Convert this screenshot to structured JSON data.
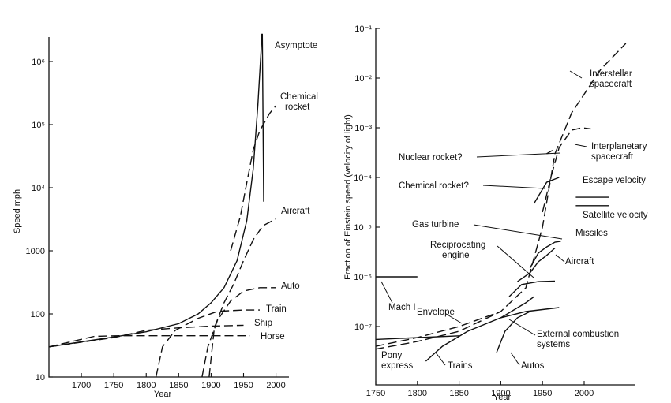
{
  "chart_data": [
    {
      "type": "line",
      "title": "",
      "xlabel": "Year",
      "ylabel": "Speed mph",
      "y_scale": "log",
      "xlim": [
        1650,
        2020
      ],
      "ylim": [
        10,
        3000000
      ],
      "x_ticks": [
        1700,
        1750,
        1800,
        1850,
        1900,
        1950,
        2000
      ],
      "y_ticks": [
        {
          "value": 10,
          "label": "10"
        },
        {
          "value": 100,
          "label": "100"
        },
        {
          "value": 1000,
          "label": "1000"
        },
        {
          "value": 10000,
          "label": "10⁴"
        },
        {
          "value": 100000,
          "label": "10⁵"
        },
        {
          "value": 1000000,
          "label": "10⁶"
        }
      ],
      "series": [
        {
          "name": "Asymptote",
          "style": "solid",
          "points": [
            [
              1650,
              30
            ],
            [
              1700,
              36
            ],
            [
              1750,
              43
            ],
            [
              1800,
              52
            ],
            [
              1850,
              70
            ],
            [
              1880,
              100
            ],
            [
              1900,
              150
            ],
            [
              1920,
              260
            ],
            [
              1940,
              700
            ],
            [
              1955,
              3000
            ],
            [
              1965,
              20000
            ],
            [
              1972,
              200000
            ],
            [
              1977,
              1500000
            ],
            [
              1978,
              2700000
            ],
            [
              1979,
              2700000
            ],
            [
              1981,
              6000
            ]
          ]
        },
        {
          "name": "Chemical rocket",
          "style": "dashed",
          "points": [
            [
              1930,
              1000
            ],
            [
              1945,
              3500
            ],
            [
              1955,
              12000
            ],
            [
              1965,
              40000
            ],
            [
              1975,
              80000
            ],
            [
              1990,
              150000
            ],
            [
              2000,
              200000
            ]
          ]
        },
        {
          "name": "Aircraft",
          "style": "dashed",
          "points": [
            [
              1897,
              10
            ],
            [
              1905,
              60
            ],
            [
              1920,
              150
            ],
            [
              1935,
              300
            ],
            [
              1950,
              700
            ],
            [
              1965,
              1500
            ],
            [
              1980,
              2500
            ],
            [
              2000,
              3200
            ]
          ]
        },
        {
          "name": "Auto",
          "style": "dashed",
          "points": [
            [
              1886,
              10
            ],
            [
              1895,
              30
            ],
            [
              1910,
              80
            ],
            [
              1930,
              160
            ],
            [
              1950,
              230
            ],
            [
              1975,
              260
            ],
            [
              2000,
              260
            ]
          ]
        },
        {
          "name": "Train",
          "style": "dashed",
          "points": [
            [
              1815,
              10
            ],
            [
              1825,
              30
            ],
            [
              1845,
              55
            ],
            [
              1880,
              85
            ],
            [
              1910,
              110
            ],
            [
              1950,
              115
            ],
            [
              1975,
              115
            ]
          ]
        },
        {
          "name": "Ship",
          "style": "dashed",
          "points": [
            [
              1650,
              30
            ],
            [
              1750,
              42
            ],
            [
              1800,
              55
            ],
            [
              1850,
              60
            ],
            [
              1900,
              64
            ],
            [
              1950,
              66
            ]
          ]
        },
        {
          "name": "Horse",
          "style": "dashed",
          "points": [
            [
              1650,
              30
            ],
            [
              1720,
              44
            ],
            [
              1760,
              45
            ],
            [
              1850,
              45
            ],
            [
              1900,
              45
            ],
            [
              1960,
              45
            ]
          ]
        }
      ]
    },
    {
      "type": "line",
      "title": "",
      "xlabel": "Year",
      "ylabel": "Fraction of Einstein speed (velocity of light)",
      "y_scale": "log",
      "xlim": [
        1750,
        2080
      ],
      "ylim": [
        2e-08,
        0.1
      ],
      "x_ticks": [
        1750,
        1800,
        1850,
        1900,
        1950,
        2000
      ],
      "y_ticks": [
        {
          "value": 0.1,
          "label": "10⁻¹"
        },
        {
          "value": 0.01,
          "label": "10⁻²"
        },
        {
          "value": 0.001,
          "label": "10⁻³"
        },
        {
          "value": 0.0001,
          "label": "10⁻⁴"
        },
        {
          "value": 1e-05,
          "label": "10⁻⁵"
        },
        {
          "value": 1e-06,
          "label": "10⁻⁶"
        },
        {
          "value": 1e-07,
          "label": "10⁻⁷"
        }
      ],
      "series": [
        {
          "name": "Interstellar spacecraft",
          "style": "dashed",
          "points": [
            [
              1750,
              3.5e-08
            ],
            [
              1800,
              5e-08
            ],
            [
              1850,
              8e-08
            ],
            [
              1900,
              2e-07
            ],
            [
              1930,
              6e-07
            ],
            [
              1950,
              1e-05
            ],
            [
              1965,
              0.0003
            ],
            [
              1985,
              0.002
            ],
            [
              2020,
              0.015
            ],
            [
              2050,
              0.05
            ]
          ]
        },
        {
          "name": "Interplanetary spacecraft",
          "style": "dashed",
          "points": [
            [
              1950,
              2e-05
            ],
            [
              1960,
              0.0001
            ],
            [
              1970,
              0.0004
            ],
            [
              1985,
              0.0009
            ],
            [
              1998,
              0.001
            ],
            [
              2008,
              0.00095
            ]
          ]
        },
        {
          "name": "Nuclear rocket?",
          "style": "solid",
          "points": [
            [
              1955,
              0.0003
            ],
            [
              1962,
              0.00035
            ]
          ]
        },
        {
          "name": "Chemical rocket?",
          "style": "solid",
          "points": [
            [
              1940,
              3e-05
            ],
            [
              1955,
              8e-05
            ],
            [
              1970,
              0.0001
            ]
          ]
        },
        {
          "name": "Missiles",
          "style": "solid",
          "points": [
            [
              1935,
              1.5e-06
            ],
            [
              1945,
              3e-06
            ],
            [
              1955,
              4e-06
            ],
            [
              1965,
              5e-06
            ],
            [
              1972,
              5.2e-06
            ]
          ]
        },
        {
          "name": "Aircraft",
          "style": "solid",
          "points": [
            [
              1920,
              8e-07
            ],
            [
              1935,
              1.2e-06
            ],
            [
              1945,
              2e-06
            ],
            [
              1955,
              2.7e-06
            ],
            [
              1965,
              3.8e-06
            ]
          ]
        },
        {
          "name": "Reciprocating engine",
          "style": "solid",
          "points": [
            [
              1910,
              4e-07
            ],
            [
              1925,
              7e-07
            ],
            [
              1945,
              8e-07
            ],
            [
              1965,
              8.2e-07
            ]
          ]
        },
        {
          "name": "External combustion systems",
          "style": "solid",
          "points": [
            [
              1900,
              1.5e-07
            ],
            [
              1930,
              2e-07
            ],
            [
              1970,
              2.4e-07
            ]
          ]
        },
        {
          "name": "Envelope",
          "style": "dashed",
          "points": [
            [
              1750,
              4e-08
            ],
            [
              1800,
              6e-08
            ],
            [
              1850,
              1e-07
            ],
            [
              1900,
              2e-07
            ]
          ]
        },
        {
          "name": "Pony express",
          "style": "solid",
          "points": [
            [
              1750,
              5.5e-08
            ],
            [
              1850,
              6.5e-08
            ]
          ]
        },
        {
          "name": "Trains",
          "style": "solid",
          "points": [
            [
              1810,
              2e-08
            ],
            [
              1830,
              4e-08
            ],
            [
              1860,
              8e-08
            ],
            [
              1900,
              1.5e-07
            ],
            [
              1930,
              3e-07
            ],
            [
              1940,
              4e-07
            ]
          ]
        },
        {
          "name": "Autos",
          "style": "solid",
          "points": [
            [
              1895,
              3e-08
            ],
            [
              1905,
              8e-08
            ],
            [
              1920,
              1.5e-07
            ],
            [
              1935,
              2e-07
            ]
          ]
        },
        {
          "name": "Mach I",
          "style": "solid",
          "points": [
            [
              1750,
              1e-06
            ],
            [
              1800,
              1e-06
            ]
          ]
        },
        {
          "name": "Escape velocity",
          "style": "solid",
          "points": [
            [
              1990,
              4e-05
            ],
            [
              2030,
              4e-05
            ]
          ]
        },
        {
          "name": "Satellite velocity",
          "style": "solid",
          "points": [
            [
              1990,
              2.7e-05
            ],
            [
              2030,
              2.7e-05
            ]
          ]
        }
      ]
    }
  ],
  "left_chart": {
    "xlabel": "Year",
    "ylabel": "Speed mph",
    "labels": [
      "Asymptote",
      "Chemical",
      "rocket",
      "Aircraft",
      "Auto",
      "Train",
      "Ship",
      "Horse"
    ]
  },
  "right_chart": {
    "xlabel": "Year",
    "ylabel": "Fraction of Einstein speed (velocity of light)",
    "labels": {
      "interstellar_1": "Interstellar",
      "interstellar_2": "spacecraft",
      "interplanetary_1": "Interplanetary",
      "interplanetary_2": "spacecraft",
      "nuclear": "Nuclear rocket?",
      "chemical": "Chemical rocket?",
      "escape": "Escape velocity",
      "satellite": "Satellite velocity",
      "gas_turbine": "Gas turbine",
      "missiles": "Missiles",
      "recip_1": "Reciprocating",
      "recip_2": "engine",
      "aircraft": "Aircraft",
      "mach": "Mach I",
      "envelope": "Envelope",
      "ext_1": "External combustion",
      "ext_2": "systems",
      "pony_1": "Pony",
      "pony_2": "express",
      "trains": "Trains",
      "autos": "Autos"
    }
  }
}
